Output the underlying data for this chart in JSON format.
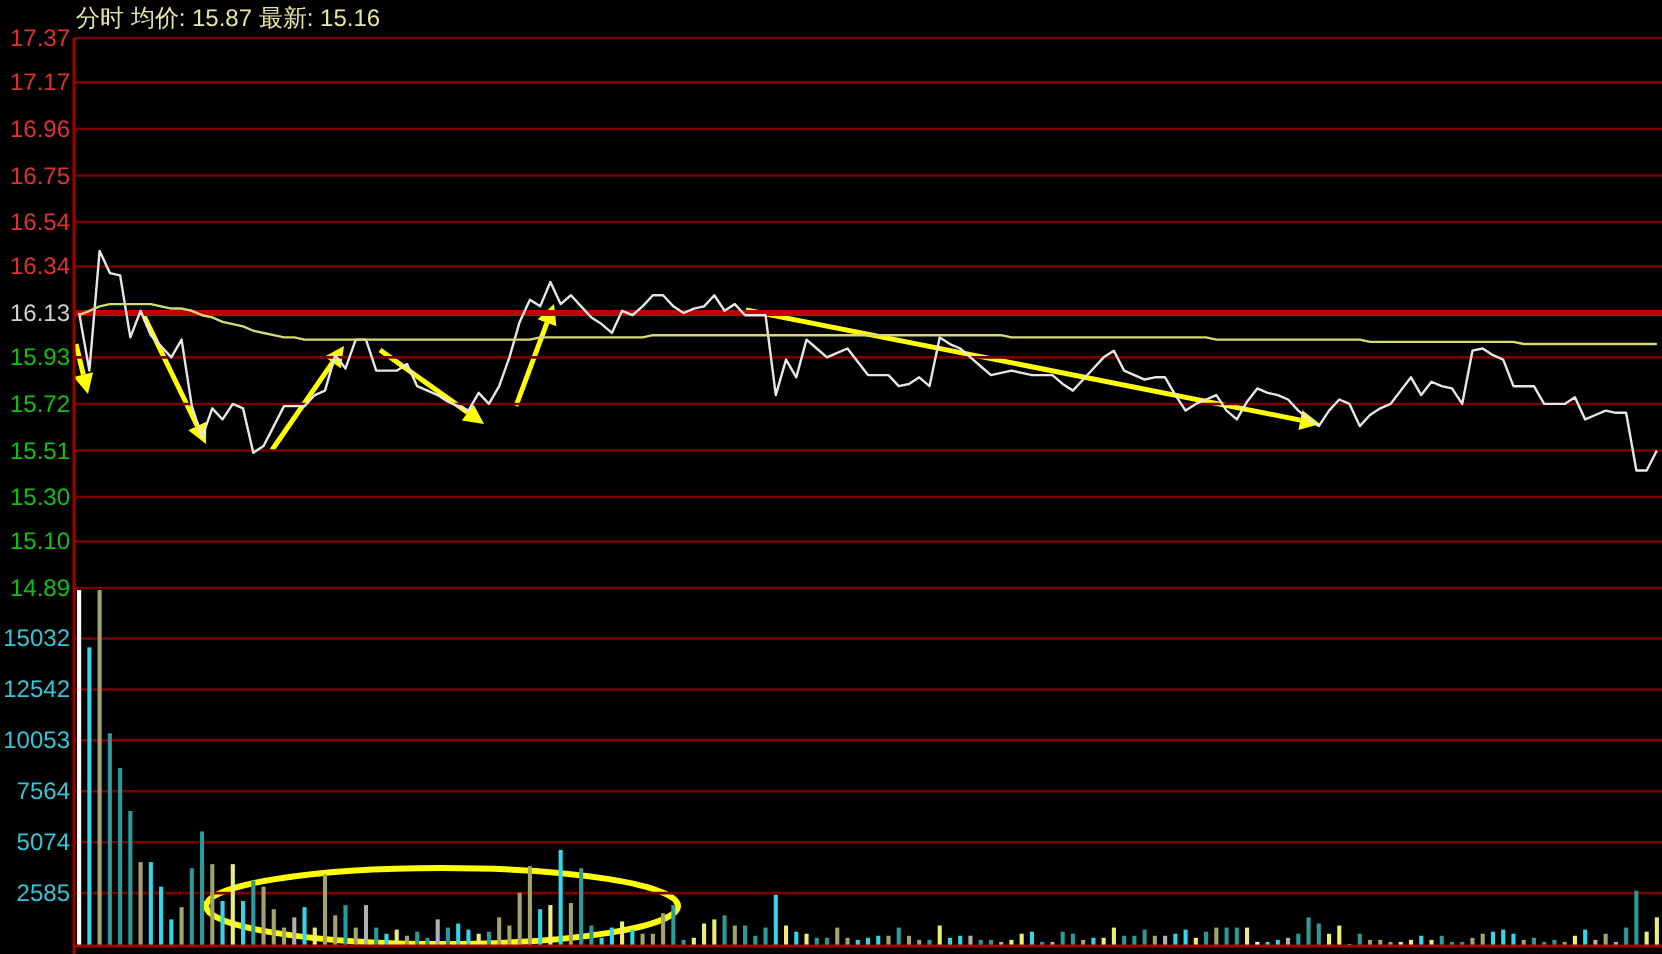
{
  "chart_data": [
    {
      "type": "line",
      "title": "分时 均价: 15.87 最新: 15.16",
      "categories": [
        null,
        null,
        null,
        null,
        null,
        null,
        null,
        null,
        null,
        null,
        null,
        null,
        null,
        null,
        null,
        null,
        null,
        null,
        null,
        null,
        null,
        null,
        null,
        null,
        null,
        null,
        null,
        null,
        null,
        null,
        null,
        null,
        null,
        null,
        null,
        null,
        null,
        null,
        null,
        null,
        null,
        null,
        null,
        null,
        null,
        null,
        null,
        null,
        null,
        null,
        null,
        null,
        null,
        null,
        null,
        null,
        null,
        null,
        null,
        null,
        null,
        null,
        null,
        null,
        null,
        null,
        null,
        null,
        null,
        null,
        null,
        null,
        null,
        null,
        null,
        null,
        null,
        null,
        null,
        null,
        null,
        null,
        null,
        null,
        null,
        null,
        null,
        null,
        null,
        null,
        null,
        null,
        null,
        null,
        null,
        null,
        null,
        null,
        null,
        null,
        null,
        null,
        null,
        null,
        null,
        null,
        null,
        null,
        null,
        null,
        null,
        null,
        null,
        null,
        null,
        null,
        null,
        null,
        null,
        null,
        null,
        null,
        null,
        null,
        null,
        null,
        null,
        null,
        null,
        null,
        null,
        null,
        null,
        null,
        null,
        null,
        null,
        null,
        null,
        null,
        null,
        null,
        null,
        null,
        null,
        null,
        null,
        null,
        null,
        null,
        null,
        null,
        null,
        null,
        null
      ],
      "ylim": [
        14.89,
        17.37
      ],
      "yticks": [
        17.37,
        17.17,
        16.96,
        16.75,
        16.54,
        16.34,
        16.13,
        15.93,
        15.72,
        15.51,
        {
          "value": 15.3,
          "label": "15.30"
        },
        {
          "value": 15.1,
          "label": "15.10"
        },
        14.89
      ],
      "grid": "y",
      "tick_labels": "y",
      "series": [
        {
          "color": "#e6e6e6",
          "values": [
            16.13,
            15.87,
            16.41,
            16.31,
            16.3,
            16.02,
            16.14,
            16.03,
            15.98,
            15.93,
            16.01,
            15.71,
            15.57,
            15.7,
            15.65,
            15.72,
            15.7,
            15.5,
            15.53,
            15.62,
            15.71,
            15.71,
            15.71,
            15.76,
            15.78,
            15.94,
            15.88,
            16.01,
            16.01,
            15.87,
            15.87,
            15.87,
            15.9,
            15.8,
            15.78,
            15.76,
            15.73,
            15.71,
            15.69,
            15.77,
            15.72,
            15.8,
            15.93,
            16.09,
            16.19,
            16.16,
            16.27,
            16.17,
            16.21,
            16.16,
            16.11,
            16.08,
            16.04,
            16.14,
            16.12,
            16.16,
            16.21,
            16.21,
            16.16,
            16.13,
            16.15,
            16.16,
            16.21,
            16.14,
            16.17,
            16.12,
            16.12,
            16.12,
            15.76,
            15.92,
            15.84,
            16.01,
            15.97,
            15.93,
            15.95,
            15.97,
            15.91,
            15.85,
            15.85,
            15.85,
            15.8,
            15.81,
            15.84,
            15.8,
            16.02,
            15.99,
            15.97,
            15.93,
            15.89,
            15.85,
            15.86,
            15.87,
            15.86,
            15.85,
            15.85,
            15.85,
            15.81,
            15.78,
            15.83,
            15.88,
            15.93,
            15.96,
            15.87,
            15.85,
            15.83,
            15.84,
            15.84,
            15.76,
            15.69,
            15.72,
            15.74,
            15.76,
            15.69,
            15.65,
            15.73,
            15.79,
            15.77,
            15.76,
            15.74,
            15.69,
            15.65,
            15.62,
            15.69,
            15.74,
            15.72,
            15.62,
            15.67,
            15.7,
            15.72,
            15.78,
            15.84,
            15.76,
            15.82,
            15.8,
            15.79,
            15.72,
            15.96,
            15.97,
            15.94,
            15.92,
            15.8,
            15.8,
            15.8,
            15.72,
            15.72,
            15.72,
            15.75,
            15.65,
            15.67,
            15.69,
            15.68,
            15.68,
            15.42,
            15.42,
            15.51
          ]
        },
        {
          "color": "#d8d878",
          "values": [
            16.12,
            16.14,
            16.16,
            16.17,
            16.17,
            16.17,
            16.17,
            16.17,
            16.16,
            16.15,
            16.15,
            16.14,
            16.12,
            16.11,
            16.09,
            16.08,
            16.07,
            16.05,
            16.04,
            16.03,
            16.02,
            16.02,
            16.01,
            16.01,
            16.01,
            16.01,
            16.01,
            16.01,
            16.01,
            16.01,
            16.01,
            16.01,
            16.01,
            16.01,
            16.01,
            16.01,
            16.01,
            16.01,
            16.01,
            16.01,
            16.01,
            16.01,
            16.01,
            16.01,
            16.01,
            16.02,
            16.02,
            16.02,
            16.02,
            16.02,
            16.02,
            16.02,
            16.02,
            16.02,
            16.02,
            16.02,
            16.03,
            16.03,
            16.03,
            16.03,
            16.03,
            16.03,
            16.03,
            16.03,
            16.03,
            16.03,
            16.03,
            16.03,
            16.03,
            16.03,
            16.03,
            16.03,
            16.03,
            16.03,
            16.03,
            16.03,
            16.03,
            16.03,
            16.03,
            16.03,
            16.03,
            16.03,
            16.03,
            16.03,
            16.03,
            16.03,
            16.03,
            16.03,
            16.03,
            16.03,
            16.03,
            16.02,
            16.02,
            16.02,
            16.02,
            16.02,
            16.02,
            16.02,
            16.02,
            16.02,
            16.02,
            16.02,
            16.02,
            16.02,
            16.02,
            16.02,
            16.02,
            16.02,
            16.02,
            16.02,
            16.02,
            16.01,
            16.01,
            16.01,
            16.01,
            16.01,
            16.01,
            16.01,
            16.01,
            16.01,
            16.01,
            16.01,
            16.01,
            16.01,
            16.01,
            16.01,
            16.0,
            16.0,
            16.0,
            16.0,
            16.0,
            16.0,
            16.0,
            16.0,
            16.0,
            16.0,
            16.0,
            16.0,
            16.0,
            16.0,
            16.0,
            15.99,
            15.99,
            15.99,
            15.99,
            15.99,
            15.99,
            15.99,
            15.99,
            15.99,
            15.99,
            15.99,
            15.99,
            15.99,
            15.99
          ]
        }
      ],
      "ref_lines": [
        {
          "axis": "y",
          "value": 16.13,
          "color": "#c00000"
        }
      ]
    },
    {
      "type": "bar",
      "categories": [
        null,
        null,
        null,
        null,
        null,
        null,
        null,
        null,
        null,
        null,
        null,
        null,
        null,
        null,
        null,
        null,
        null,
        null,
        null,
        null,
        null,
        null,
        null,
        null,
        null,
        null,
        null,
        null,
        null,
        null,
        null,
        null,
        null,
        null,
        null,
        null,
        null,
        null,
        null,
        null,
        null,
        null,
        null,
        null,
        null,
        null,
        null,
        null,
        null,
        null,
        null,
        null,
        null,
        null,
        null,
        null,
        null,
        null,
        null,
        null,
        null,
        null,
        null,
        null,
        null,
        null,
        null,
        null,
        null,
        null,
        null,
        null,
        null,
        null,
        null,
        null,
        null,
        null,
        null,
        null,
        null,
        null,
        null,
        null,
        null,
        null,
        null,
        null,
        null,
        null,
        null,
        null,
        null,
        null,
        null,
        null,
        null,
        null,
        null,
        null,
        null,
        null,
        null,
        null,
        null,
        null,
        null,
        null,
        null,
        null,
        null,
        null,
        null,
        null,
        null,
        null,
        null,
        null,
        null,
        null,
        null,
        null,
        null,
        null,
        null,
        null,
        null,
        null,
        null,
        null,
        null,
        null,
        null,
        null,
        null,
        null,
        null,
        null,
        null,
        null,
        null,
        null,
        null,
        null,
        null,
        null,
        null,
        null,
        null,
        null,
        null,
        null,
        null,
        null,
        null
      ],
      "ylim": [
        0,
        17500
      ],
      "yticks": [
        2585,
        5074,
        7564,
        10053,
        12542,
        15032
      ],
      "grid": "y",
      "tick_labels": "y",
      "values": [
        17400,
        14600,
        17400,
        10400,
        8700,
        6600,
        4100,
        4100,
        2900,
        1300,
        1900,
        3800,
        5600,
        4000,
        2200,
        4000,
        2200,
        3200,
        2900,
        1800,
        900,
        1400,
        1900,
        900,
        3500,
        1500,
        2000,
        900,
        2000,
        900,
        600,
        800,
        500,
        700,
        400,
        1300,
        900,
        1100,
        800,
        600,
        700,
        1400,
        1000,
        2600,
        3900,
        1800,
        2000,
        4700,
        2100,
        3800,
        1000,
        400,
        900,
        1200,
        800,
        600,
        600,
        1600,
        2000,
        300,
        400,
        1100,
        1300,
        1500,
        1000,
        1000,
        500,
        900,
        2500,
        1000,
        700,
        600,
        400,
        400,
        900,
        400,
        300,
        400,
        500,
        500,
        900,
        500,
        300,
        300,
        1000,
        400,
        500,
        500,
        300,
        300,
        200,
        300,
        600,
        700,
        200,
        200,
        700,
        600,
        300,
        400,
        400,
        900,
        500,
        500,
        800,
        500,
        500,
        600,
        800,
        400,
        700,
        900,
        900,
        900,
        900,
        200,
        200,
        300,
        400,
        600,
        1400,
        1100,
        600,
        1000,
        100,
        600,
        300,
        300,
        200,
        200,
        300,
        500,
        300,
        500,
        200,
        200,
        400,
        600,
        700,
        800,
        600,
        300,
        400,
        200,
        300,
        200,
        500,
        800,
        300,
        600,
        200,
        900,
        2700,
        700,
        1400
      ],
      "colors": [
        "#ffffff",
        "#33d6e6",
        "#a3a36a",
        "#2a9a9a",
        "#2a9a9a",
        "#2a9a9a",
        "#a3a36a",
        "#33d6e6",
        "#33d6e6",
        "#33d6e6",
        "#a3a36a",
        "#2a9a9a",
        "#2a9a9a",
        "#a3a36a",
        "#33d6e6",
        "#eeee77",
        "#33d6e6",
        "#2a9a9a",
        "#a3a36a",
        "#a3a36a",
        "#a3a36a",
        "#b0b0b0",
        "#33d6e6",
        "#eeee77",
        "#a3a36a",
        "#a3a36a",
        "#2a9a9a",
        "#a3a36a",
        "#b0b0b0",
        "#2a9a9a",
        "#33d6e6",
        "#eeee77",
        "#a3a36a",
        "#2a9a9a",
        "#2a9a9a",
        "#b0b0b0",
        "#2a9a9a",
        "#33d6e6",
        "#33d6e6",
        "#eeee77",
        "#2a9a9a",
        "#a3a36a",
        "#a3a36a",
        "#a3a36a",
        "#a3a36a",
        "#33d6e6",
        "#eeee77",
        "#33d6e6",
        "#a3a36a",
        "#2a9a9a",
        "#2a9a9a",
        "#33d6e6",
        "#33d6e6",
        "#eeee77",
        "#33d6e6",
        "#a3a36a",
        "#a3a36a",
        "#a3a36a",
        "#2a9a9a",
        "#2a9a9a",
        "#eeee77",
        "#eeee77",
        "#eeee77",
        "#2a9a9a",
        "#a3a36a",
        "#2a9a9a",
        "#2a9a9a",
        "#2a9a9a",
        "#33d6e6",
        "#eeee77",
        "#33d6e6",
        "#eeee77",
        "#2a9a9a",
        "#2a9a9a",
        "#a3a36a",
        "#a3a36a",
        "#33d6e6",
        "#33d6e6",
        "#33d6e6",
        "#a3a36a",
        "#2a9a9a",
        "#a3a36a",
        "#a3a36a",
        "#2a9a9a",
        "#eeee77",
        "#33d6e6",
        "#33d6e6",
        "#b0b0b0",
        "#2a9a9a",
        "#2a9a9a",
        "#b0b0b0",
        "#eeee77",
        "#eeee77",
        "#33d6e6",
        "#2a9a9a",
        "#b0b0b0",
        "#2a9a9a",
        "#2a9a9a",
        "#a3a36a",
        "#33d6e6",
        "#eeee77",
        "#eeee77",
        "#2a9a9a",
        "#2a9a9a",
        "#2a9a9a",
        "#a3a36a",
        "#b0b0b0",
        "#33d6e6",
        "#33d6e6",
        "#eeee77",
        "#2a9a9a",
        "#a3a36a",
        "#2a9a9a",
        "#2a9a9a",
        "#eeee77",
        "#ffffff",
        "#33d6e6",
        "#33d6e6",
        "#b0b0b0",
        "#2a9a9a",
        "#2a9a9a",
        "#2a9a9a",
        "#eeee77",
        "#eeee77",
        "#33d6e6",
        "#2a9a9a",
        "#a3a36a",
        "#a3a36a",
        "#a3a36a",
        "#eeee77",
        "#eeee77",
        "#33d6e6",
        "#eeee77",
        "#2a9a9a",
        "#2a9a9a",
        "#2a9a9a",
        "#a3a36a",
        "#a3a36a",
        "#33d6e6",
        "#33d6e6",
        "#33d6e6",
        "#a3a36a",
        "#2a9a9a",
        "#2a9a9a",
        "#2a9a9a",
        "#a3a36a",
        "#eeee77",
        "#33d6e6",
        "#b0b0b0",
        "#a3a36a",
        "#b0b0b0",
        "#2a9a9a",
        "#2a9a9a",
        "#eeee77",
        "#eeee77"
      ]
    }
  ]
}
